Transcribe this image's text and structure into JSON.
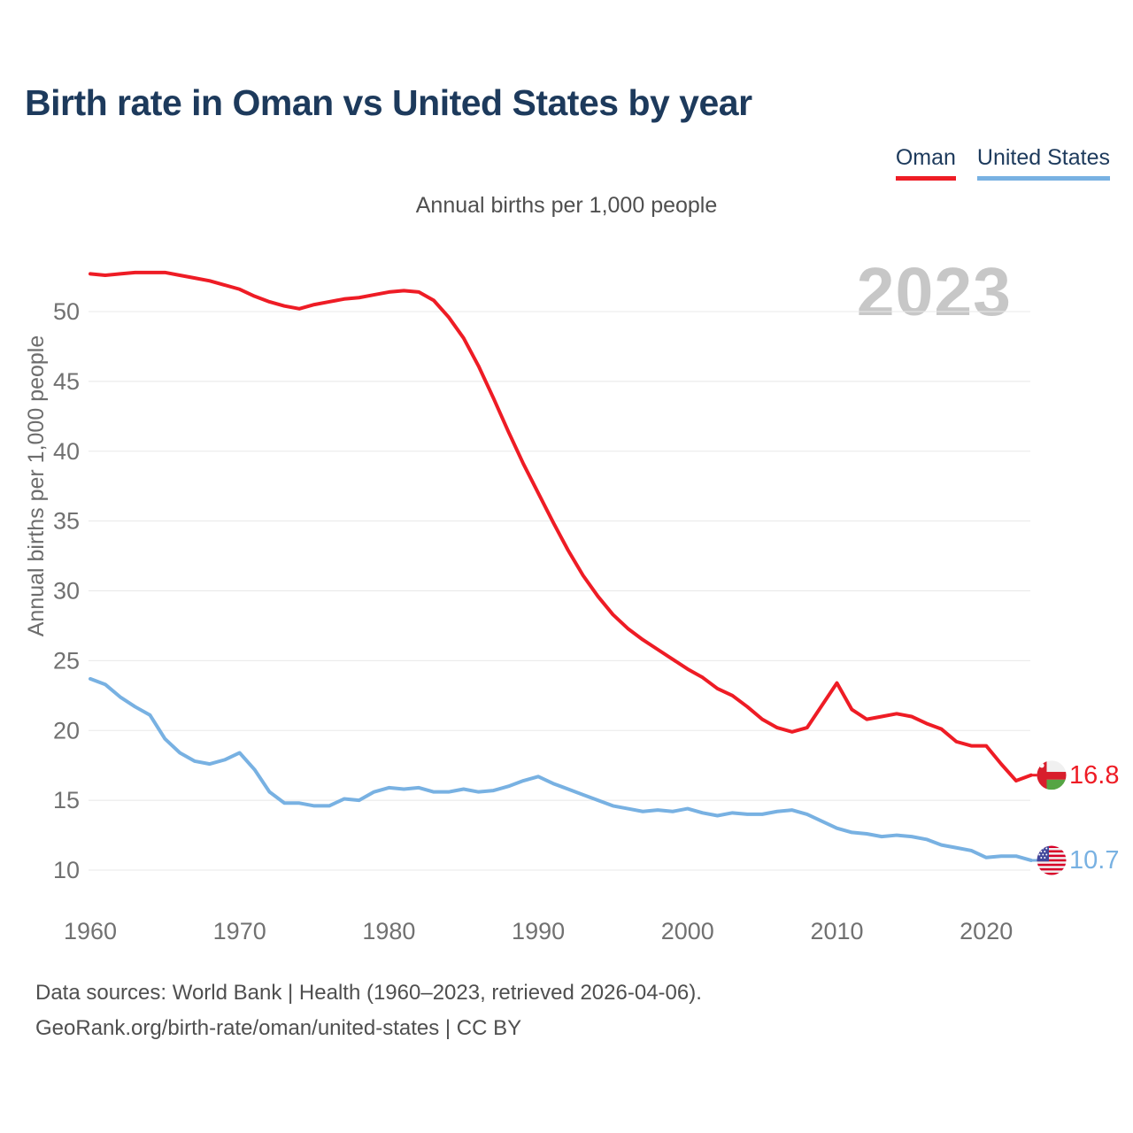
{
  "title": "Birth rate in Oman vs United States by year",
  "subtitle": "Annual births per 1,000 people",
  "watermark": "2023",
  "legend": [
    {
      "label": "Oman",
      "color": "#ee1c25"
    },
    {
      "label": "United States",
      "color": "#78b1e2"
    }
  ],
  "footer": {
    "line1": "Data sources: World Bank | Health (1960–2023, retrieved 2026-04-06).",
    "line2": "GeoRank.org/birth-rate/oman/united-states | CC BY"
  },
  "colors": {
    "title_navy": "#1d3a5c",
    "oman_red": "#ee1c25",
    "us_blue": "#78b1e2",
    "grid": "#e8e8e8",
    "tick_text": "#717171",
    "muted_text": "#4f4f4f",
    "watermark": "#c7c7c7",
    "flags": {
      "oman": {
        "red": "#d81e2c",
        "green": "#55a544",
        "white": "#f0f0f0"
      },
      "usa": {
        "red": "#d80027",
        "blue": "#41479b",
        "white": "#f0f0f0"
      }
    }
  },
  "chart_data": {
    "type": "line",
    "title": "Birth rate in Oman vs United States by year",
    "ylabel": "Annual births per 1,000 people",
    "xlabel": "",
    "grid": "horizontal",
    "legend_position": "top-right",
    "watermark": "2023",
    "xticks": [
      1960,
      1970,
      1980,
      1990,
      2000,
      2010,
      2020
    ],
    "yticks": [
      10,
      15,
      20,
      25,
      30,
      35,
      40,
      45,
      50
    ],
    "ylim": [
      10,
      50
    ],
    "xlim": [
      1960,
      2023
    ],
    "years": [
      1960,
      1961,
      1962,
      1963,
      1964,
      1965,
      1966,
      1967,
      1968,
      1969,
      1970,
      1971,
      1972,
      1973,
      1974,
      1975,
      1976,
      1977,
      1978,
      1979,
      1980,
      1981,
      1982,
      1983,
      1984,
      1985,
      1986,
      1987,
      1988,
      1989,
      1990,
      1991,
      1992,
      1993,
      1994,
      1995,
      1996,
      1997,
      1998,
      1999,
      2000,
      2001,
      2002,
      2003,
      2004,
      2005,
      2006,
      2007,
      2008,
      2009,
      2010,
      2011,
      2012,
      2013,
      2014,
      2015,
      2016,
      2017,
      2018,
      2019,
      2020,
      2021,
      2022,
      2023
    ],
    "series": [
      {
        "name": "Oman",
        "slug": "oman",
        "color": "#ee1c25",
        "end_label": "16.8",
        "flag": "oman-flag-icon",
        "values": [
          52.7,
          52.6,
          52.7,
          52.8,
          52.8,
          52.8,
          52.6,
          52.4,
          52.2,
          51.9,
          51.6,
          51.1,
          50.7,
          50.4,
          50.2,
          50.5,
          50.7,
          50.9,
          51.0,
          51.2,
          51.4,
          51.5,
          51.4,
          50.8,
          49.6,
          48.1,
          46.1,
          43.8,
          41.4,
          39.1,
          37.0,
          34.9,
          32.9,
          31.1,
          29.6,
          28.3,
          27.3,
          26.5,
          25.8,
          25.1,
          24.4,
          23.8,
          23.0,
          22.5,
          21.7,
          20.8,
          20.2,
          19.9,
          20.2,
          21.8,
          23.4,
          21.5,
          20.8,
          21.0,
          21.2,
          21.0,
          20.5,
          20.1,
          19.2,
          18.9,
          18.9,
          17.6,
          16.4,
          16.8
        ]
      },
      {
        "name": "United States",
        "slug": "usa",
        "color": "#78b1e2",
        "end_label": "10.7",
        "flag": "us-flag-icon",
        "values": [
          23.7,
          23.3,
          22.4,
          21.7,
          21.1,
          19.4,
          18.4,
          17.8,
          17.6,
          17.9,
          18.4,
          17.2,
          15.6,
          14.8,
          14.8,
          14.6,
          14.6,
          15.1,
          15.0,
          15.6,
          15.9,
          15.8,
          15.9,
          15.6,
          15.6,
          15.8,
          15.6,
          15.7,
          16.0,
          16.4,
          16.7,
          16.2,
          15.8,
          15.4,
          15.0,
          14.6,
          14.4,
          14.2,
          14.3,
          14.2,
          14.4,
          14.1,
          13.9,
          14.1,
          14.0,
          14.0,
          14.2,
          14.3,
          14.0,
          13.5,
          13.0,
          12.7,
          12.6,
          12.4,
          12.5,
          12.4,
          12.2,
          11.8,
          11.6,
          11.4,
          10.9,
          11.0,
          11.0,
          10.7
        ]
      }
    ]
  }
}
